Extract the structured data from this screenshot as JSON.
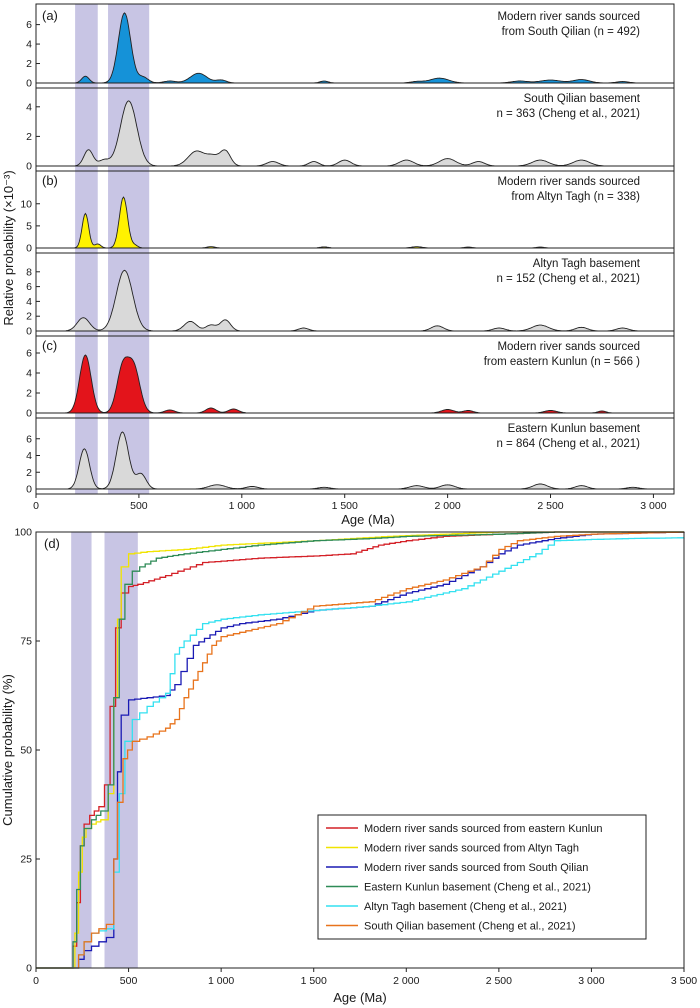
{
  "figure": {
    "shared_ylabel": "Relative probability (×10⁻³)",
    "shared_xlabel": "Age (Ma)",
    "highlight_bands_ma": [
      [
        190,
        300
      ],
      [
        350,
        550
      ]
    ]
  },
  "chart_data": [
    {
      "type": "area",
      "panel_tag": "(a)",
      "caption_lines": [
        "Modern river sands sourced",
        "from South Qilian (n = 492)"
      ],
      "fill": "#1592d8",
      "xlim": [
        0,
        3100
      ],
      "ylim": [
        0,
        7.5
      ],
      "yticks": [
        "0",
        "2",
        "4",
        "6"
      ],
      "peaks": [
        [
          240,
          0.7,
          18
        ],
        [
          430,
          7.2,
          30
        ],
        [
          520,
          0.6,
          25
        ],
        [
          650,
          0.2,
          30
        ],
        [
          790,
          1.0,
          40
        ],
        [
          900,
          0.3,
          25
        ],
        [
          1400,
          0.2,
          20
        ],
        [
          1850,
          0.15,
          30
        ],
        [
          1960,
          0.5,
          45
        ],
        [
          2350,
          0.2,
          40
        ],
        [
          2500,
          0.3,
          50
        ],
        [
          2650,
          0.35,
          40
        ],
        [
          2850,
          0.15,
          30
        ]
      ]
    },
    {
      "type": "area",
      "panel_tag": "",
      "caption_lines": [
        "South Qilian basement",
        "n = 363 (Cheng et al., 2021)"
      ],
      "fill": "#d9d9d9",
      "xlim": [
        0,
        3100
      ],
      "ylim": [
        0,
        5
      ],
      "yticks": [
        "0",
        "2",
        "4"
      ],
      "peaks": [
        [
          255,
          1.1,
          22
        ],
        [
          330,
          0.4,
          25
        ],
        [
          450,
          4.4,
          40
        ],
        [
          780,
          1.0,
          40
        ],
        [
          860,
          0.6,
          30
        ],
        [
          920,
          1.0,
          25
        ],
        [
          1150,
          0.3,
          30
        ],
        [
          1350,
          0.3,
          25
        ],
        [
          1500,
          0.4,
          30
        ],
        [
          1800,
          0.4,
          35
        ],
        [
          2000,
          0.5,
          40
        ],
        [
          2150,
          0.3,
          30
        ],
        [
          2450,
          0.4,
          40
        ],
        [
          2650,
          0.4,
          40
        ]
      ]
    },
    {
      "type": "area",
      "panel_tag": "(b)",
      "caption_lines": [
        "Modern river sands sourced",
        "from Altyn Tagh (n = 338)"
      ],
      "fill": "#fff200",
      "xlim": [
        0,
        3100
      ],
      "ylim": [
        0,
        16.5
      ],
      "yticks": [
        "0",
        "5",
        "10"
      ],
      "peaks": [
        [
          240,
          7.8,
          16
        ],
        [
          300,
          0.9,
          15
        ],
        [
          425,
          11.5,
          20
        ],
        [
          480,
          0.6,
          15
        ],
        [
          850,
          0.3,
          20
        ],
        [
          1400,
          0.25,
          20
        ],
        [
          1850,
          0.3,
          25
        ],
        [
          2100,
          0.2,
          20
        ],
        [
          2450,
          0.2,
          20
        ]
      ]
    },
    {
      "type": "area",
      "panel_tag": "",
      "caption_lines": [
        "Altyn Tagh basement",
        "n = 152 (Cheng et al., 2021)"
      ],
      "fill": "#d9d9d9",
      "xlim": [
        0,
        3100
      ],
      "ylim": [
        0,
        10
      ],
      "yticks": [
        "0",
        "2",
        "4",
        "6",
        "8"
      ],
      "peaks": [
        [
          230,
          1.8,
          30
        ],
        [
          430,
          8.2,
          40
        ],
        [
          750,
          1.3,
          30
        ],
        [
          850,
          0.8,
          25
        ],
        [
          920,
          1.5,
          25
        ],
        [
          1300,
          0.4,
          25
        ],
        [
          1950,
          0.7,
          30
        ],
        [
          2250,
          0.4,
          30
        ],
        [
          2450,
          0.8,
          40
        ],
        [
          2650,
          0.5,
          30
        ],
        [
          2850,
          0.4,
          30
        ]
      ]
    },
    {
      "type": "area",
      "panel_tag": "(c)",
      "caption_lines": [
        "Modern river sands sourced",
        "from eastern Kunlun (n = 566 )"
      ],
      "fill": "#e3141b",
      "xlim": [
        0,
        3100
      ],
      "ylim": [
        0,
        7.3
      ],
      "yticks": [
        "0",
        "2",
        "4",
        "6"
      ],
      "peaks": [
        [
          240,
          5.8,
          28
        ],
        [
          420,
          4.3,
          28
        ],
        [
          475,
          4.5,
          30
        ],
        [
          650,
          0.3,
          25
        ],
        [
          850,
          0.5,
          25
        ],
        [
          960,
          0.4,
          25
        ],
        [
          2000,
          0.35,
          30
        ],
        [
          2100,
          0.25,
          25
        ],
        [
          2500,
          0.25,
          30
        ],
        [
          2750,
          0.2,
          20
        ]
      ]
    },
    {
      "type": "area",
      "panel_tag": "",
      "caption_lines": [
        "Eastern Kunlun basement",
        "n = 864  (Cheng et al., 2021)"
      ],
      "fill": "#d9d9d9",
      "xlim": [
        0,
        3100
      ],
      "ylim": [
        0,
        8
      ],
      "yticks": [
        "0",
        "2",
        "4",
        "6"
      ],
      "peaks": [
        [
          235,
          4.8,
          25
        ],
        [
          420,
          6.8,
          30
        ],
        [
          510,
          1.8,
          25
        ],
        [
          880,
          0.5,
          40
        ],
        [
          1050,
          0.3,
          30
        ],
        [
          1400,
          0.2,
          30
        ],
        [
          1850,
          0.4,
          35
        ],
        [
          2000,
          0.5,
          35
        ],
        [
          2450,
          0.6,
          35
        ],
        [
          2650,
          0.4,
          30
        ],
        [
          2900,
          0.2,
          30
        ]
      ]
    },
    {
      "type": "line",
      "panel_tag": "(d)",
      "xlabel": "Age (Ma)",
      "ylabel": "Cumulative probability (%)",
      "xlim": [
        0,
        3500
      ],
      "ylim": [
        0,
        100
      ],
      "x_ticks": [
        0,
        500,
        1000,
        1500,
        2000,
        2500,
        3000,
        3500
      ],
      "x_tick_labels": [
        "0",
        "500",
        "1 000",
        "1 500",
        "2 000",
        "2 500",
        "3 000",
        "3 500"
      ],
      "y_ticks": [
        0,
        25,
        50,
        75,
        100
      ],
      "highlight_bands_ma": [
        [
          190,
          300
        ],
        [
          370,
          550
        ]
      ],
      "series": [
        {
          "name": "Modern river sands sourced from eastern Kunlun",
          "color": "#d42027",
          "x": [
            0,
            180,
            200,
            220,
            240,
            260,
            290,
            340,
            370,
            400,
            430,
            460,
            500,
            550,
            700,
            900,
            1200,
            1500,
            1700,
            1850,
            2000,
            2100,
            2200,
            2500,
            2800,
            3500
          ],
          "y": [
            0,
            0,
            5,
            15,
            28,
            33,
            35,
            37,
            42,
            60,
            78,
            86,
            87.5,
            88,
            90,
            93,
            94,
            94.5,
            95,
            97,
            98,
            98.5,
            99,
            99.5,
            100,
            100
          ]
        },
        {
          "name": "Modern river sands sourced from Altyn Tagh",
          "color": "#f0e400",
          "x": [
            0,
            190,
            210,
            230,
            250,
            270,
            300,
            350,
            390,
            420,
            440,
            460,
            500,
            600,
            800,
            1000,
            1500,
            1900,
            2500,
            3500
          ],
          "y": [
            0,
            0,
            8,
            22,
            30,
            32,
            33,
            34,
            40,
            62,
            80,
            92,
            95,
            95.5,
            96,
            97,
            98,
            99,
            100,
            100
          ]
        },
        {
          "name": "Modern river sands sourced from South Qilian",
          "color": "#1a1ab4",
          "x": [
            0,
            200,
            230,
            260,
            300,
            380,
            420,
            440,
            460,
            500,
            700,
            750,
            850,
            1000,
            1100,
            1300,
            1500,
            1800,
            2000,
            2200,
            2400,
            2500,
            2600,
            2800,
            3000,
            3500
          ],
          "y": [
            0,
            0,
            2,
            4,
            5,
            7,
            25,
            45,
            58,
            61.5,
            62.5,
            65,
            74,
            78,
            79,
            80,
            82,
            83,
            86,
            88,
            92,
            95,
            97,
            98.5,
            99.5,
            100
          ]
        },
        {
          "name": "Eastern Kunlun basement (Cheng et al., 2021)",
          "color": "#2e8b57",
          "x": [
            0,
            180,
            200,
            220,
            240,
            260,
            300,
            350,
            390,
            420,
            450,
            480,
            520,
            560,
            650,
            800,
            1000,
            1200,
            1500,
            1800,
            2000,
            2500,
            2800,
            3500
          ],
          "y": [
            0,
            0,
            6,
            18,
            28,
            32,
            34,
            36,
            42,
            62,
            80,
            88,
            91,
            92,
            94,
            95,
            96,
            97,
            98,
            98.5,
            99,
            99.5,
            100,
            100
          ]
        },
        {
          "name": "Altyn Tagh basement (Cheng et al., 2021)",
          "color": "#33e1f0",
          "x": [
            0,
            200,
            230,
            260,
            300,
            380,
            420,
            450,
            480,
            520,
            600,
            700,
            750,
            800,
            900,
            1000,
            1200,
            1500,
            1800,
            2000,
            2300,
            2500,
            2700,
            2800,
            3000,
            3200,
            3500
          ],
          "y": [
            0,
            0,
            3,
            6,
            8,
            9,
            22,
            40,
            52,
            57,
            60,
            63,
            72,
            75,
            79,
            80,
            81,
            82,
            83,
            84,
            87,
            91,
            95,
            98,
            98.3,
            98.5,
            98.7
          ]
        },
        {
          "name": "South Qilian basement (Cheng et al., 2021)",
          "color": "#e8731c",
          "x": [
            0,
            200,
            230,
            260,
            300,
            380,
            420,
            440,
            470,
            520,
            600,
            700,
            750,
            800,
            850,
            900,
            950,
            1000,
            1100,
            1300,
            1500,
            1800,
            2000,
            2200,
            2400,
            2500,
            2600,
            2800,
            3000,
            3500
          ],
          "y": [
            0,
            0,
            3,
            6,
            8,
            10,
            25,
            38,
            48,
            52,
            53,
            55,
            57,
            62,
            66,
            70,
            74,
            76,
            77,
            79,
            83,
            84,
            87,
            89,
            92,
            96,
            98,
            99,
            99.5,
            100
          ]
        }
      ]
    }
  ]
}
